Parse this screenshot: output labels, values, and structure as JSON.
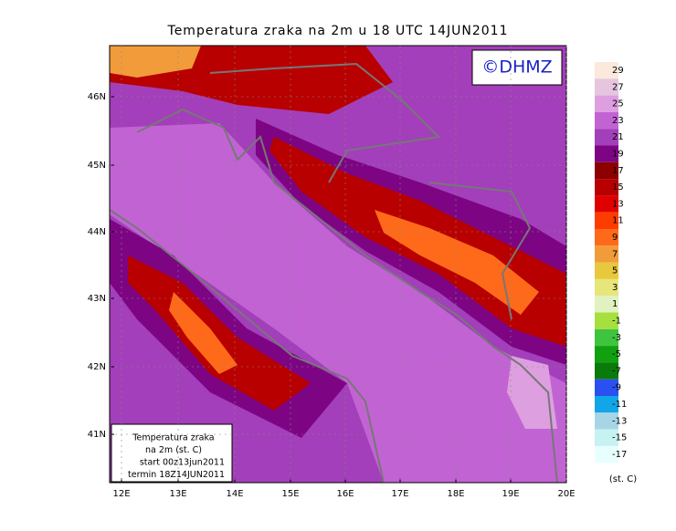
{
  "title": "Temperatura zraka na 2m u 18 UTC 14JUN2011",
  "watermark": "©DHMZ",
  "map": {
    "lon_labels": [
      "12E",
      "13E",
      "14E",
      "15E",
      "16E",
      "17E",
      "18E",
      "19E",
      "20E"
    ],
    "lat_labels": [
      "46N",
      "45N",
      "44N",
      "43N",
      "42N",
      "41N"
    ]
  },
  "legend_box": [
    "Temperatura zraka",
    "na 2m (st. C)",
    "start 00z13jun2011",
    "termin 18Z14JUN2011"
  ],
  "colorbar": {
    "levels": [
      29,
      27,
      25,
      23,
      21,
      19,
      17,
      15,
      13,
      11,
      9,
      7,
      5,
      3,
      1,
      -1,
      -3,
      -5,
      -7,
      -9,
      -11,
      -13,
      -15,
      -17
    ],
    "colors": [
      "#fbe9dc",
      "#e6c6df",
      "#dd9fe0",
      "#c263d4",
      "#a33fba",
      "#7d0583",
      "#8c0000",
      "#b80000",
      "#e00000",
      "#ff3c00",
      "#ff6a1a",
      "#f29b3b",
      "#e8c83c",
      "#e6e67a",
      "#dff2c0",
      "#a6e03e",
      "#3fc43f",
      "#10a010",
      "#0a7a0a",
      "#2a50f0",
      "#12a6e8",
      "#a6d6e6",
      "#c6f2f2",
      "#e8ffff"
    ],
    "unit": "(st. C)"
  }
}
